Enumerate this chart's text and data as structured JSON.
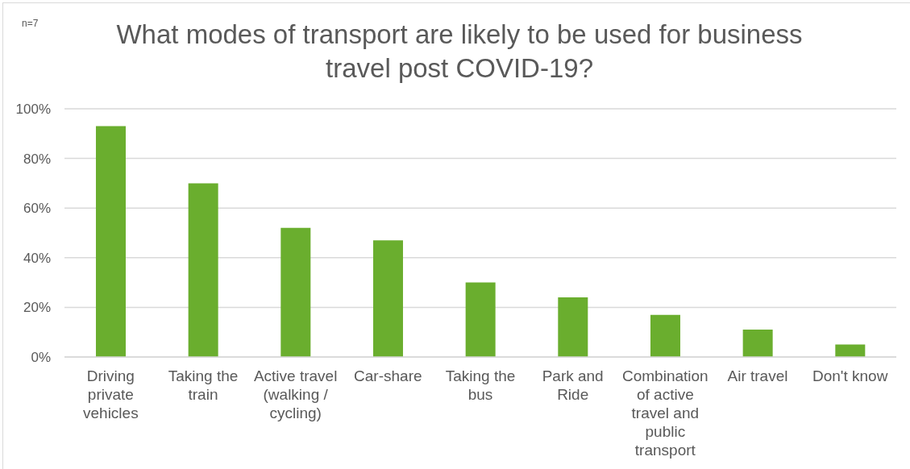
{
  "chart_data": {
    "type": "bar",
    "title": "What modes of transport are likely to be used for business travel post COVID-19?",
    "annotations": [
      "n=7"
    ],
    "categories": [
      "Driving private vehicles",
      "Taking the train",
      "Active travel (walking / cycling)",
      "Car-share",
      "Taking the bus",
      "Park and Ride",
      "Combination of active travel and public transport",
      "Air travel",
      "Don't know"
    ],
    "values": [
      93,
      70,
      52,
      47,
      30,
      24,
      17,
      11,
      5
    ],
    "color": "#6aae2e",
    "ylim": [
      0,
      100
    ],
    "yticks": [
      {
        "value": 0,
        "label": "0%"
      },
      {
        "value": 20,
        "label": "20%"
      },
      {
        "value": 40,
        "label": "40%"
      },
      {
        "value": 60,
        "label": "60%"
      },
      {
        "value": 80,
        "label": "80%"
      },
      {
        "value": 100,
        "label": "100%"
      }
    ],
    "grid": "y"
  }
}
